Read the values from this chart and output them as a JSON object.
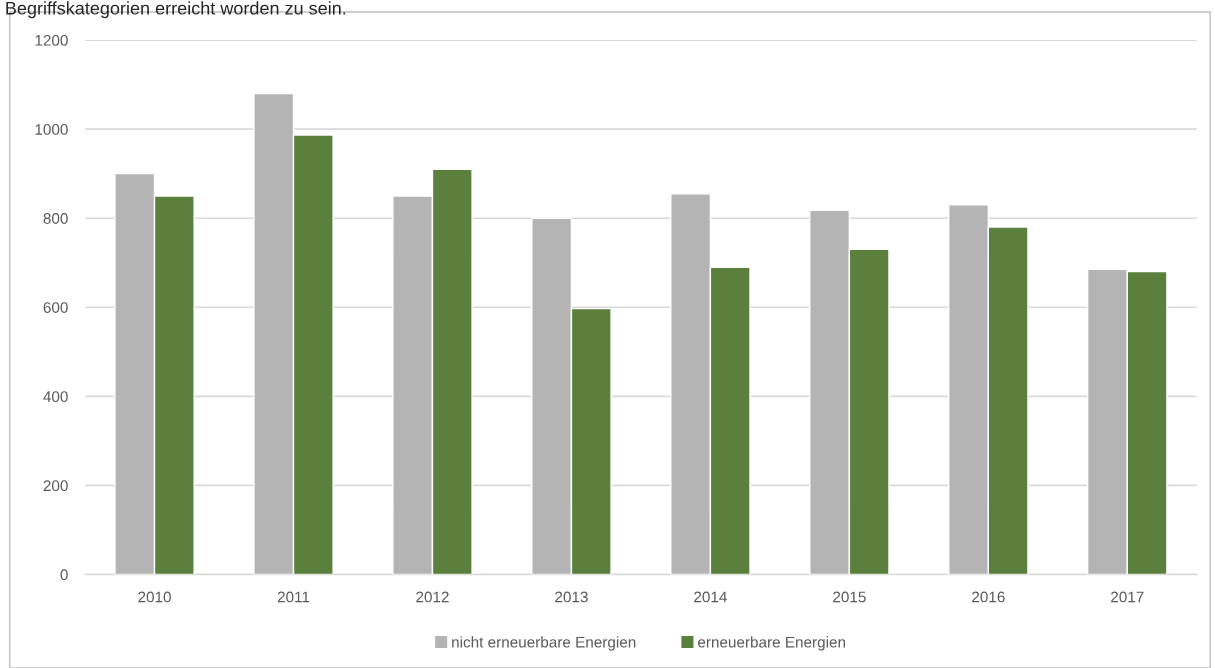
{
  "chart_data": {
    "type": "bar",
    "annotations": [
      "Begriffskategorien erreicht worden zu sein."
    ],
    "categories": [
      "2010",
      "2011",
      "2012",
      "2013",
      "2014",
      "2015",
      "2016",
      "2017"
    ],
    "series": [
      {
        "name": "nicht erneuerbare Energien",
        "color": "#b4b4b4",
        "values": [
          900,
          1080,
          850,
          800,
          855,
          818,
          830,
          685
        ]
      },
      {
        "name": "erneuerbare Energien",
        "color": "#5b7f3c",
        "values": [
          850,
          987,
          910,
          597,
          690,
          730,
          780,
          680
        ]
      }
    ],
    "ylim": [
      0,
      1200
    ],
    "yticks": [
      0,
      200,
      400,
      600,
      800,
      1000,
      1200
    ],
    "grid": "y",
    "legend": "bottom"
  }
}
